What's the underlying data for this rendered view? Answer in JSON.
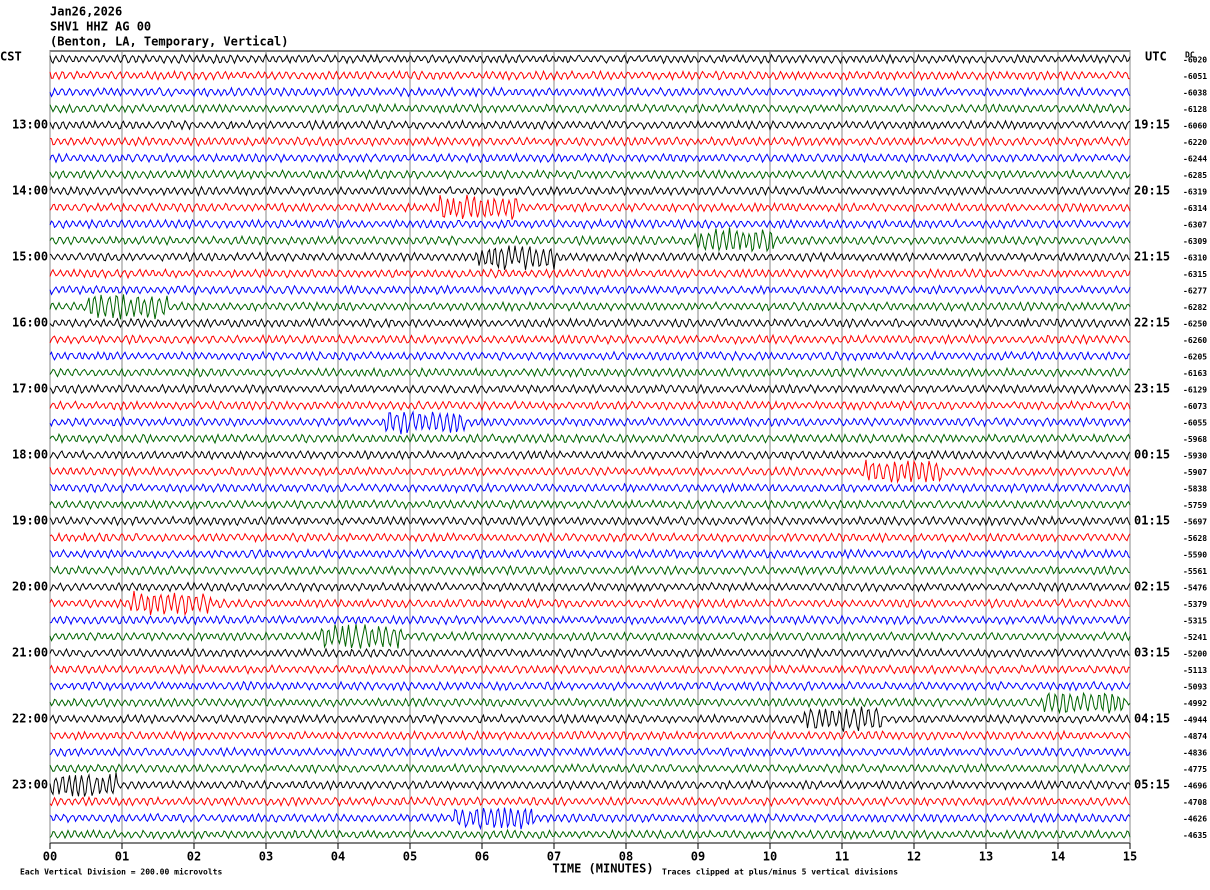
{
  "chart_data": {
    "type": "helicorder",
    "header": [
      "Jan26,2026",
      "SHV1 HHZ AG 00",
      "(Benton, LA, Temporary, Vertical)"
    ],
    "left_axis_title": "CST",
    "right_axis_title": "UTC",
    "offset_title": "DC",
    "left_labels": [
      "13:00",
      "14:00",
      "15:00",
      "16:00",
      "17:00",
      "18:00",
      "19:00",
      "20:00",
      "21:00",
      "22:00",
      "23:00"
    ],
    "right_labels": [
      "19:15",
      "20:15",
      "21:15",
      "22:15",
      "23:15",
      "00:15",
      "01:15",
      "02:15",
      "03:15",
      "04:15",
      "05:15"
    ],
    "offsets": [
      -6020,
      -6051,
      -6038,
      -6128,
      -6060,
      -6220,
      -6244,
      -6285,
      -6319,
      -6314,
      -6307,
      -6309,
      -6310,
      -6315,
      -6277,
      -6282,
      -6250,
      -6260,
      -6205,
      -6163,
      -6129,
      -6073,
      -6055,
      -5968,
      -5930,
      -5907,
      -5838,
      -5759,
      -5697,
      -5628,
      -5590,
      -5561,
      -5476,
      -5379,
      -5315,
      -5241,
      -5200,
      -5113,
      -5093,
      -4992,
      -4944,
      -4874,
      -4836,
      -4775,
      -4696,
      -4708,
      -4626,
      -4635
    ],
    "trace_colors": [
      "#000000",
      "#ff0000",
      "#0000ff",
      "#006400"
    ],
    "xlabel": "TIME (MINUTES)",
    "xlim": [
      0,
      15
    ],
    "xticks": [
      {
        "value": 0,
        "label": "00"
      },
      {
        "value": 1,
        "label": "01"
      },
      {
        "value": 2,
        "label": "02"
      },
      {
        "value": 3,
        "label": "03"
      },
      {
        "value": 4,
        "label": "04"
      },
      {
        "value": 5,
        "label": "05"
      },
      {
        "value": 6,
        "label": "06"
      },
      {
        "value": 7,
        "label": "07"
      },
      {
        "value": 8,
        "label": "08"
      },
      {
        "value": 9,
        "label": "09"
      },
      10,
      11,
      12,
      13,
      14,
      15
    ],
    "grid": true,
    "footer_left": "Each Vertical Division =  200.00 microvolts",
    "footer_right": "Traces clipped at plus/minus 5 vertical divisions"
  }
}
